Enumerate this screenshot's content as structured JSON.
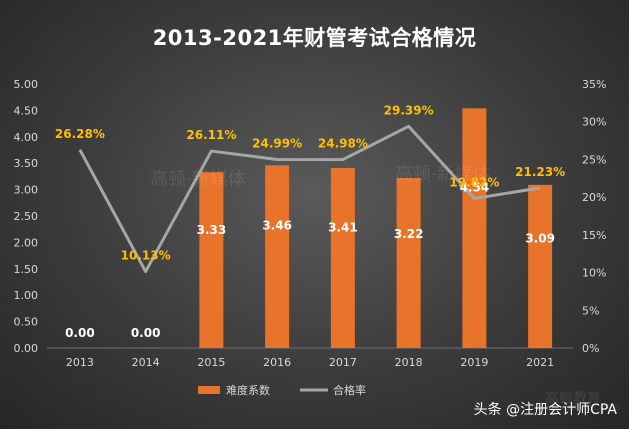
{
  "chart_data": {
    "type": "bar",
    "title": "2013-2021年财管考试合格情况",
    "categories": [
      "2013",
      "2014",
      "2015",
      "2016",
      "2017",
      "2018",
      "2019",
      "2021"
    ],
    "series": [
      {
        "name": "难度系数",
        "type": "bar",
        "axis": "left",
        "values": [
          0.0,
          0.0,
          3.33,
          3.46,
          3.41,
          3.22,
          4.54,
          3.09
        ],
        "labels": [
          "0.00",
          "0.00",
          "3.33",
          "3.46",
          "3.41",
          "3.22",
          "4.54",
          "3.09"
        ],
        "color": "#e8732a"
      },
      {
        "name": "合格率",
        "type": "line",
        "axis": "right",
        "values": [
          26.28,
          10.13,
          26.11,
          24.99,
          24.98,
          29.39,
          19.82,
          21.23
        ],
        "labels": [
          "26.28%",
          "10.13%",
          "26.11%",
          "24.99%",
          "24.98%",
          "29.39%",
          "19.82%",
          "21.23%"
        ],
        "color": "#a6a6a6",
        "label_color": "#ffc000"
      }
    ],
    "y_left": {
      "min": 0,
      "max": 5,
      "ticks": [
        "0.00",
        "0.50",
        "1.00",
        "1.50",
        "2.00",
        "2.50",
        "3.00",
        "3.50",
        "4.00",
        "4.50",
        "5.00"
      ]
    },
    "y_right": {
      "min": 0,
      "max": 35,
      "ticks": [
        "0%",
        "5%",
        "10%",
        "15%",
        "20%",
        "25%",
        "30%",
        "35%"
      ]
    },
    "legend_position": "bottom",
    "grid": false
  },
  "watermarks": [
    "高顿·新媒体",
    "高顿·新媒体",
    "高顿教育",
    "GOLDEN EDUCATION"
  ],
  "footer": "头条 @注册会计师CPA"
}
